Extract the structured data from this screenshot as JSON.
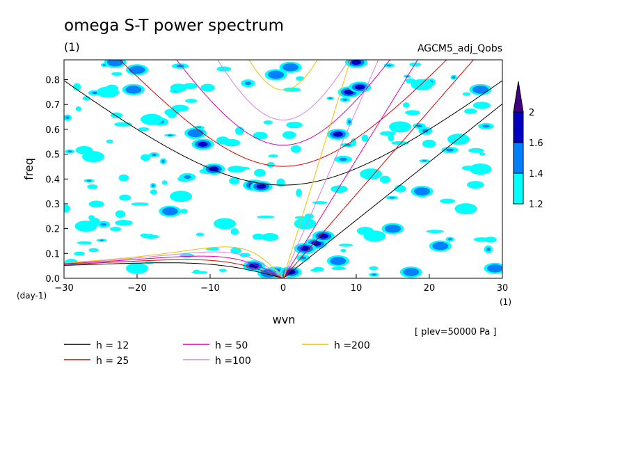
{
  "chart_data": {
    "type": "heatmap",
    "title": "omega S-T power spectrum",
    "title_unit": "(1)",
    "run_name": "AGCM5_adj_Qobs",
    "xlabel": "wvn",
    "x_unit": "(1)",
    "ylabel": "freq",
    "y_unit": "(day-1)",
    "xlim": [
      -30,
      30
    ],
    "ylim": [
      0,
      0.88
    ],
    "x_ticks": [
      "−30",
      "−20",
      "−10",
      "0",
      "10",
      "20",
      "30"
    ],
    "y_ticks": [
      "0.0",
      "0.1",
      "0.2",
      "0.3",
      "0.4",
      "0.5",
      "0.6",
      "0.7",
      "0.8"
    ],
    "level_note": "[ plev=50000 Pa ]",
    "colorbar": {
      "levels": [
        "1.2",
        "1.4",
        "1.6",
        "2"
      ],
      "colors": [
        "#00ffff",
        "#0080ff",
        "#0000c0",
        "#400080"
      ]
    },
    "dispersion_curves": [
      {
        "label": "h = 12",
        "h": 12,
        "color": "#000000"
      },
      {
        "label": "h = 25",
        "h": 25,
        "color": "#e00000"
      },
      {
        "label": "h = 50",
        "h": 50,
        "color": "#e000b0"
      },
      {
        "label": "h =100",
        "h": 100,
        "color": "#e080e0"
      },
      {
        "label": "h =200",
        "h": 200,
        "color": "#f0c000"
      }
    ],
    "power_blobs": [
      {
        "x": -4,
        "y": 0.375,
        "level": 4
      },
      {
        "x": -3,
        "y": 0.37,
        "level": 3
      },
      {
        "x": -9.5,
        "y": 0.44,
        "level": 3
      },
      {
        "x": -11,
        "y": 0.54,
        "level": 3
      },
      {
        "x": -12,
        "y": 0.585,
        "level": 2
      },
      {
        "x": -20,
        "y": 0.84,
        "level": 2
      },
      {
        "x": -23,
        "y": 0.87,
        "level": 2
      },
      {
        "x": -20.5,
        "y": 0.76,
        "level": 2
      },
      {
        "x": -4,
        "y": 0.05,
        "level": 3
      },
      {
        "x": -1,
        "y": 0.025,
        "level": 3
      },
      {
        "x": 1,
        "y": 0.025,
        "level": 3
      },
      {
        "x": 4.5,
        "y": 0.14,
        "level": 4
      },
      {
        "x": 3,
        "y": 0.12,
        "level": 3
      },
      {
        "x": 5.5,
        "y": 0.17,
        "level": 3
      },
      {
        "x": 7.5,
        "y": 0.07,
        "level": 2
      },
      {
        "x": 7.5,
        "y": 0.58,
        "level": 3
      },
      {
        "x": 9,
        "y": 0.75,
        "level": 3
      },
      {
        "x": 10.5,
        "y": 0.77,
        "level": 3
      },
      {
        "x": 10,
        "y": 0.87,
        "level": 3
      },
      {
        "x": 1,
        "y": 0.85,
        "level": 2
      },
      {
        "x": -1,
        "y": 0.82,
        "level": 2
      },
      {
        "x": 15,
        "y": 0.2,
        "level": 2
      },
      {
        "x": 17.5,
        "y": 0.025,
        "level": 2
      },
      {
        "x": 19,
        "y": 0.35,
        "level": 2
      },
      {
        "x": 27,
        "y": 0.76,
        "level": 2
      },
      {
        "x": 29,
        "y": 0.04,
        "level": 2
      },
      {
        "x": 21.5,
        "y": 0.13,
        "level": 2
      },
      {
        "x": -15.5,
        "y": 0.27,
        "level": 2
      },
      {
        "x": -2,
        "y": 0.02,
        "level": 2
      },
      {
        "x": 12.5,
        "y": 0.17,
        "level": 1
      },
      {
        "x": 3,
        "y": 0.22,
        "level": 1
      },
      {
        "x": -8,
        "y": 0.22,
        "level": 1
      },
      {
        "x": -14,
        "y": 0.33,
        "level": 1
      },
      {
        "x": -18,
        "y": 0.64,
        "level": 1
      },
      {
        "x": -26,
        "y": 0.49,
        "level": 1
      },
      {
        "x": -24,
        "y": 0.75,
        "level": 1
      },
      {
        "x": 24,
        "y": 0.56,
        "level": 1
      },
      {
        "x": 19,
        "y": 0.78,
        "level": 1
      },
      {
        "x": 25,
        "y": 0.28,
        "level": 1
      },
      {
        "x": 27,
        "y": 0.44,
        "level": 1
      },
      {
        "x": -27,
        "y": 0.21,
        "level": 1
      },
      {
        "x": -20,
        "y": 0.04,
        "level": 1
      },
      {
        "x": 12,
        "y": 0.42,
        "level": 1
      },
      {
        "x": 16,
        "y": 0.61,
        "level": 1
      }
    ]
  }
}
